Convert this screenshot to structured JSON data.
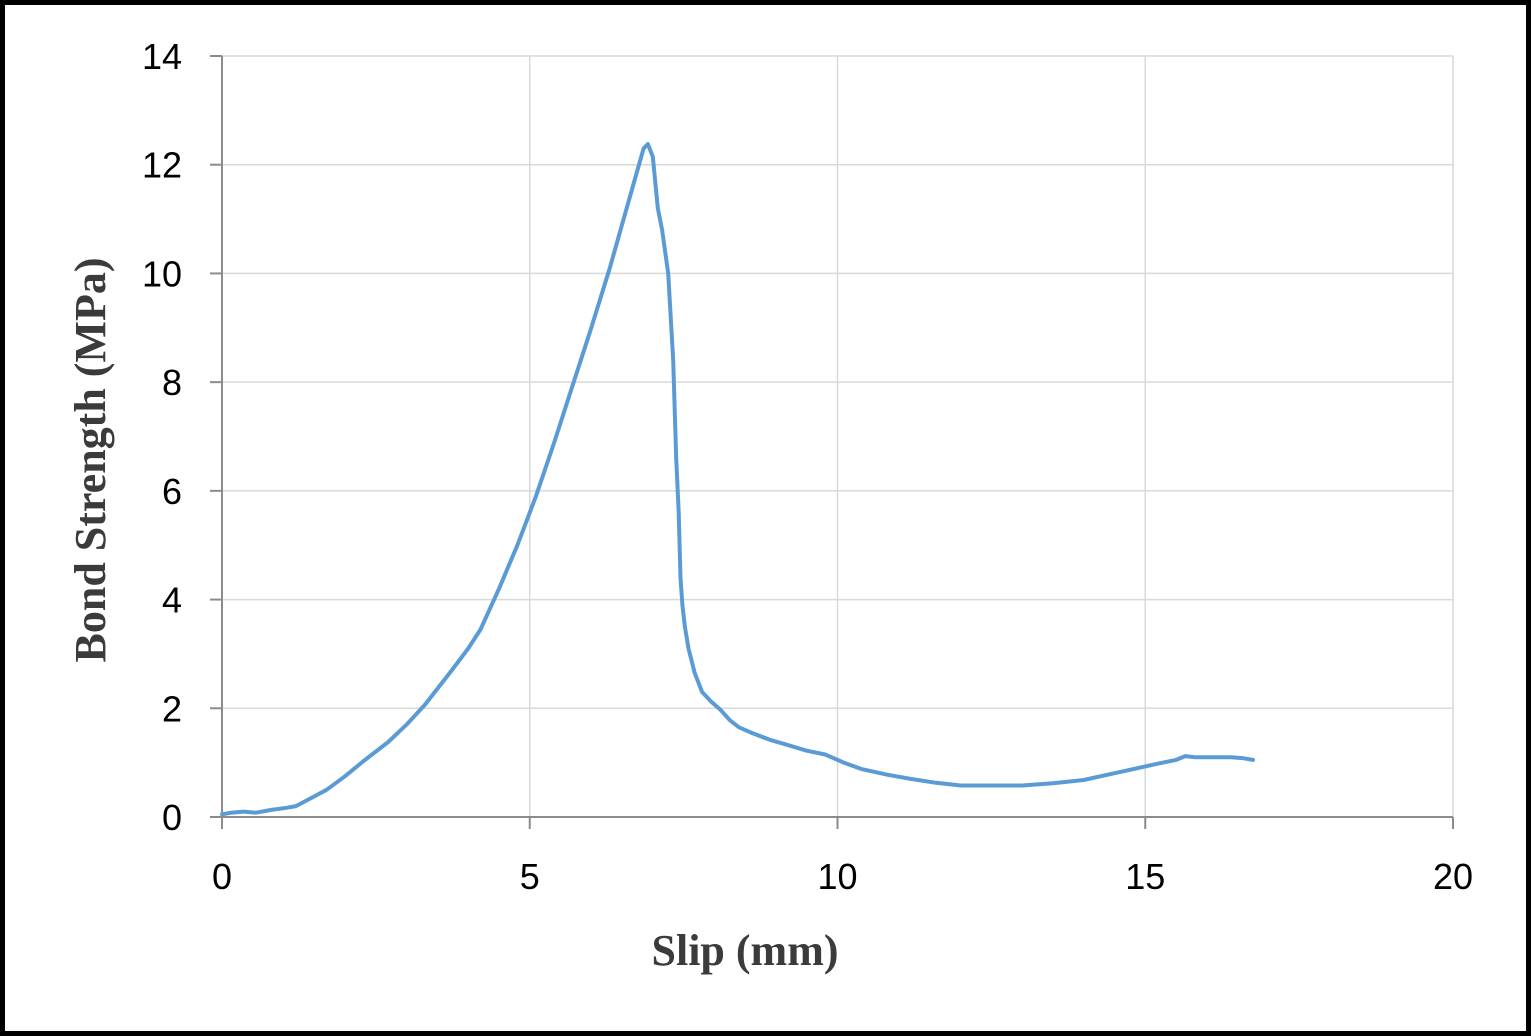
{
  "chart_data": {
    "type": "line",
    "title": "",
    "xlabel": "Slip (mm)",
    "ylabel": "Bond Strength (MPa)",
    "xlim": [
      0,
      20
    ],
    "ylim": [
      0,
      14
    ],
    "xticks": [
      0,
      5,
      10,
      15,
      20
    ],
    "yticks": [
      0,
      2,
      4,
      6,
      8,
      10,
      12,
      14
    ],
    "grid": true,
    "legend": "none",
    "line_color": "#5b9bd5",
    "series": [
      {
        "x": [
          0,
          0.15,
          0.35,
          0.55,
          0.8,
          1.05,
          1.2,
          1.4,
          1.7,
          2.0,
          2.3,
          2.7,
          3.0,
          3.3,
          3.7,
          4.0,
          4.2,
          4.5,
          4.8,
          5.1,
          5.4,
          5.7,
          6.0,
          6.3,
          6.6,
          6.85,
          6.92,
          7.0,
          7.08,
          7.15,
          7.25,
          7.33,
          7.38,
          7.42,
          7.45,
          7.48,
          7.52,
          7.58,
          7.68,
          7.8,
          7.95,
          8.1,
          8.25,
          8.4,
          8.6,
          8.9,
          9.2,
          9.5,
          9.8,
          10.1,
          10.4,
          10.8,
          11.2,
          11.6,
          12.0,
          12.5,
          13.0,
          13.5,
          14.0,
          14.4,
          14.8,
          15.2,
          15.5,
          15.65,
          15.8,
          16.1,
          16.4,
          16.6,
          16.75
        ],
        "y": [
          0.05,
          0.08,
          0.1,
          0.08,
          0.13,
          0.17,
          0.2,
          0.32,
          0.5,
          0.75,
          1.03,
          1.38,
          1.7,
          2.07,
          2.65,
          3.1,
          3.45,
          4.2,
          5.0,
          5.9,
          6.9,
          7.95,
          9.0,
          10.1,
          11.3,
          12.3,
          12.38,
          12.15,
          11.2,
          10.8,
          10.0,
          8.4,
          6.6,
          5.6,
          4.4,
          3.9,
          3.5,
          3.1,
          2.65,
          2.3,
          2.12,
          1.97,
          1.78,
          1.65,
          1.55,
          1.42,
          1.32,
          1.22,
          1.15,
          1.0,
          0.88,
          0.78,
          0.7,
          0.63,
          0.58,
          0.58,
          0.58,
          0.62,
          0.68,
          0.78,
          0.88,
          0.98,
          1.05,
          1.12,
          1.1,
          1.1,
          1.1,
          1.08,
          1.05
        ]
      }
    ]
  }
}
